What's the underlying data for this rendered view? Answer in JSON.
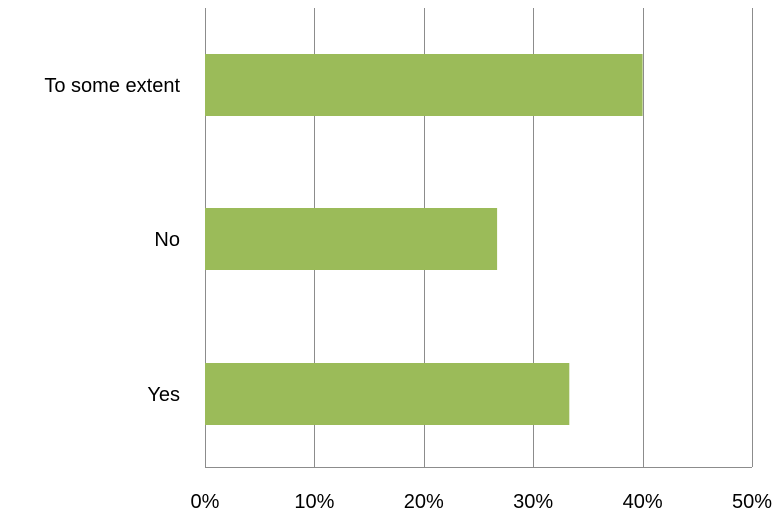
{
  "chart_data": {
    "type": "bar",
    "orientation": "horizontal",
    "title": "",
    "xlabel": "",
    "ylabel": "",
    "categories": [
      "Yes",
      "No",
      "To some extent"
    ],
    "values": [
      33.3,
      26.7,
      40.0
    ],
    "value_unit": "%",
    "xlim": [
      0,
      50
    ],
    "x_ticks": [
      0,
      10,
      20,
      30,
      40,
      50
    ],
    "x_tick_labels": [
      "0%",
      "10%",
      "20%",
      "30%",
      "40%",
      "50%"
    ],
    "grid": true,
    "grid_axis": "x",
    "legend": "none",
    "colors": {
      "bar": "#9BBB59",
      "grid": "#8C8C8C",
      "axis": "#8C8C8C",
      "text": "#000000"
    }
  }
}
